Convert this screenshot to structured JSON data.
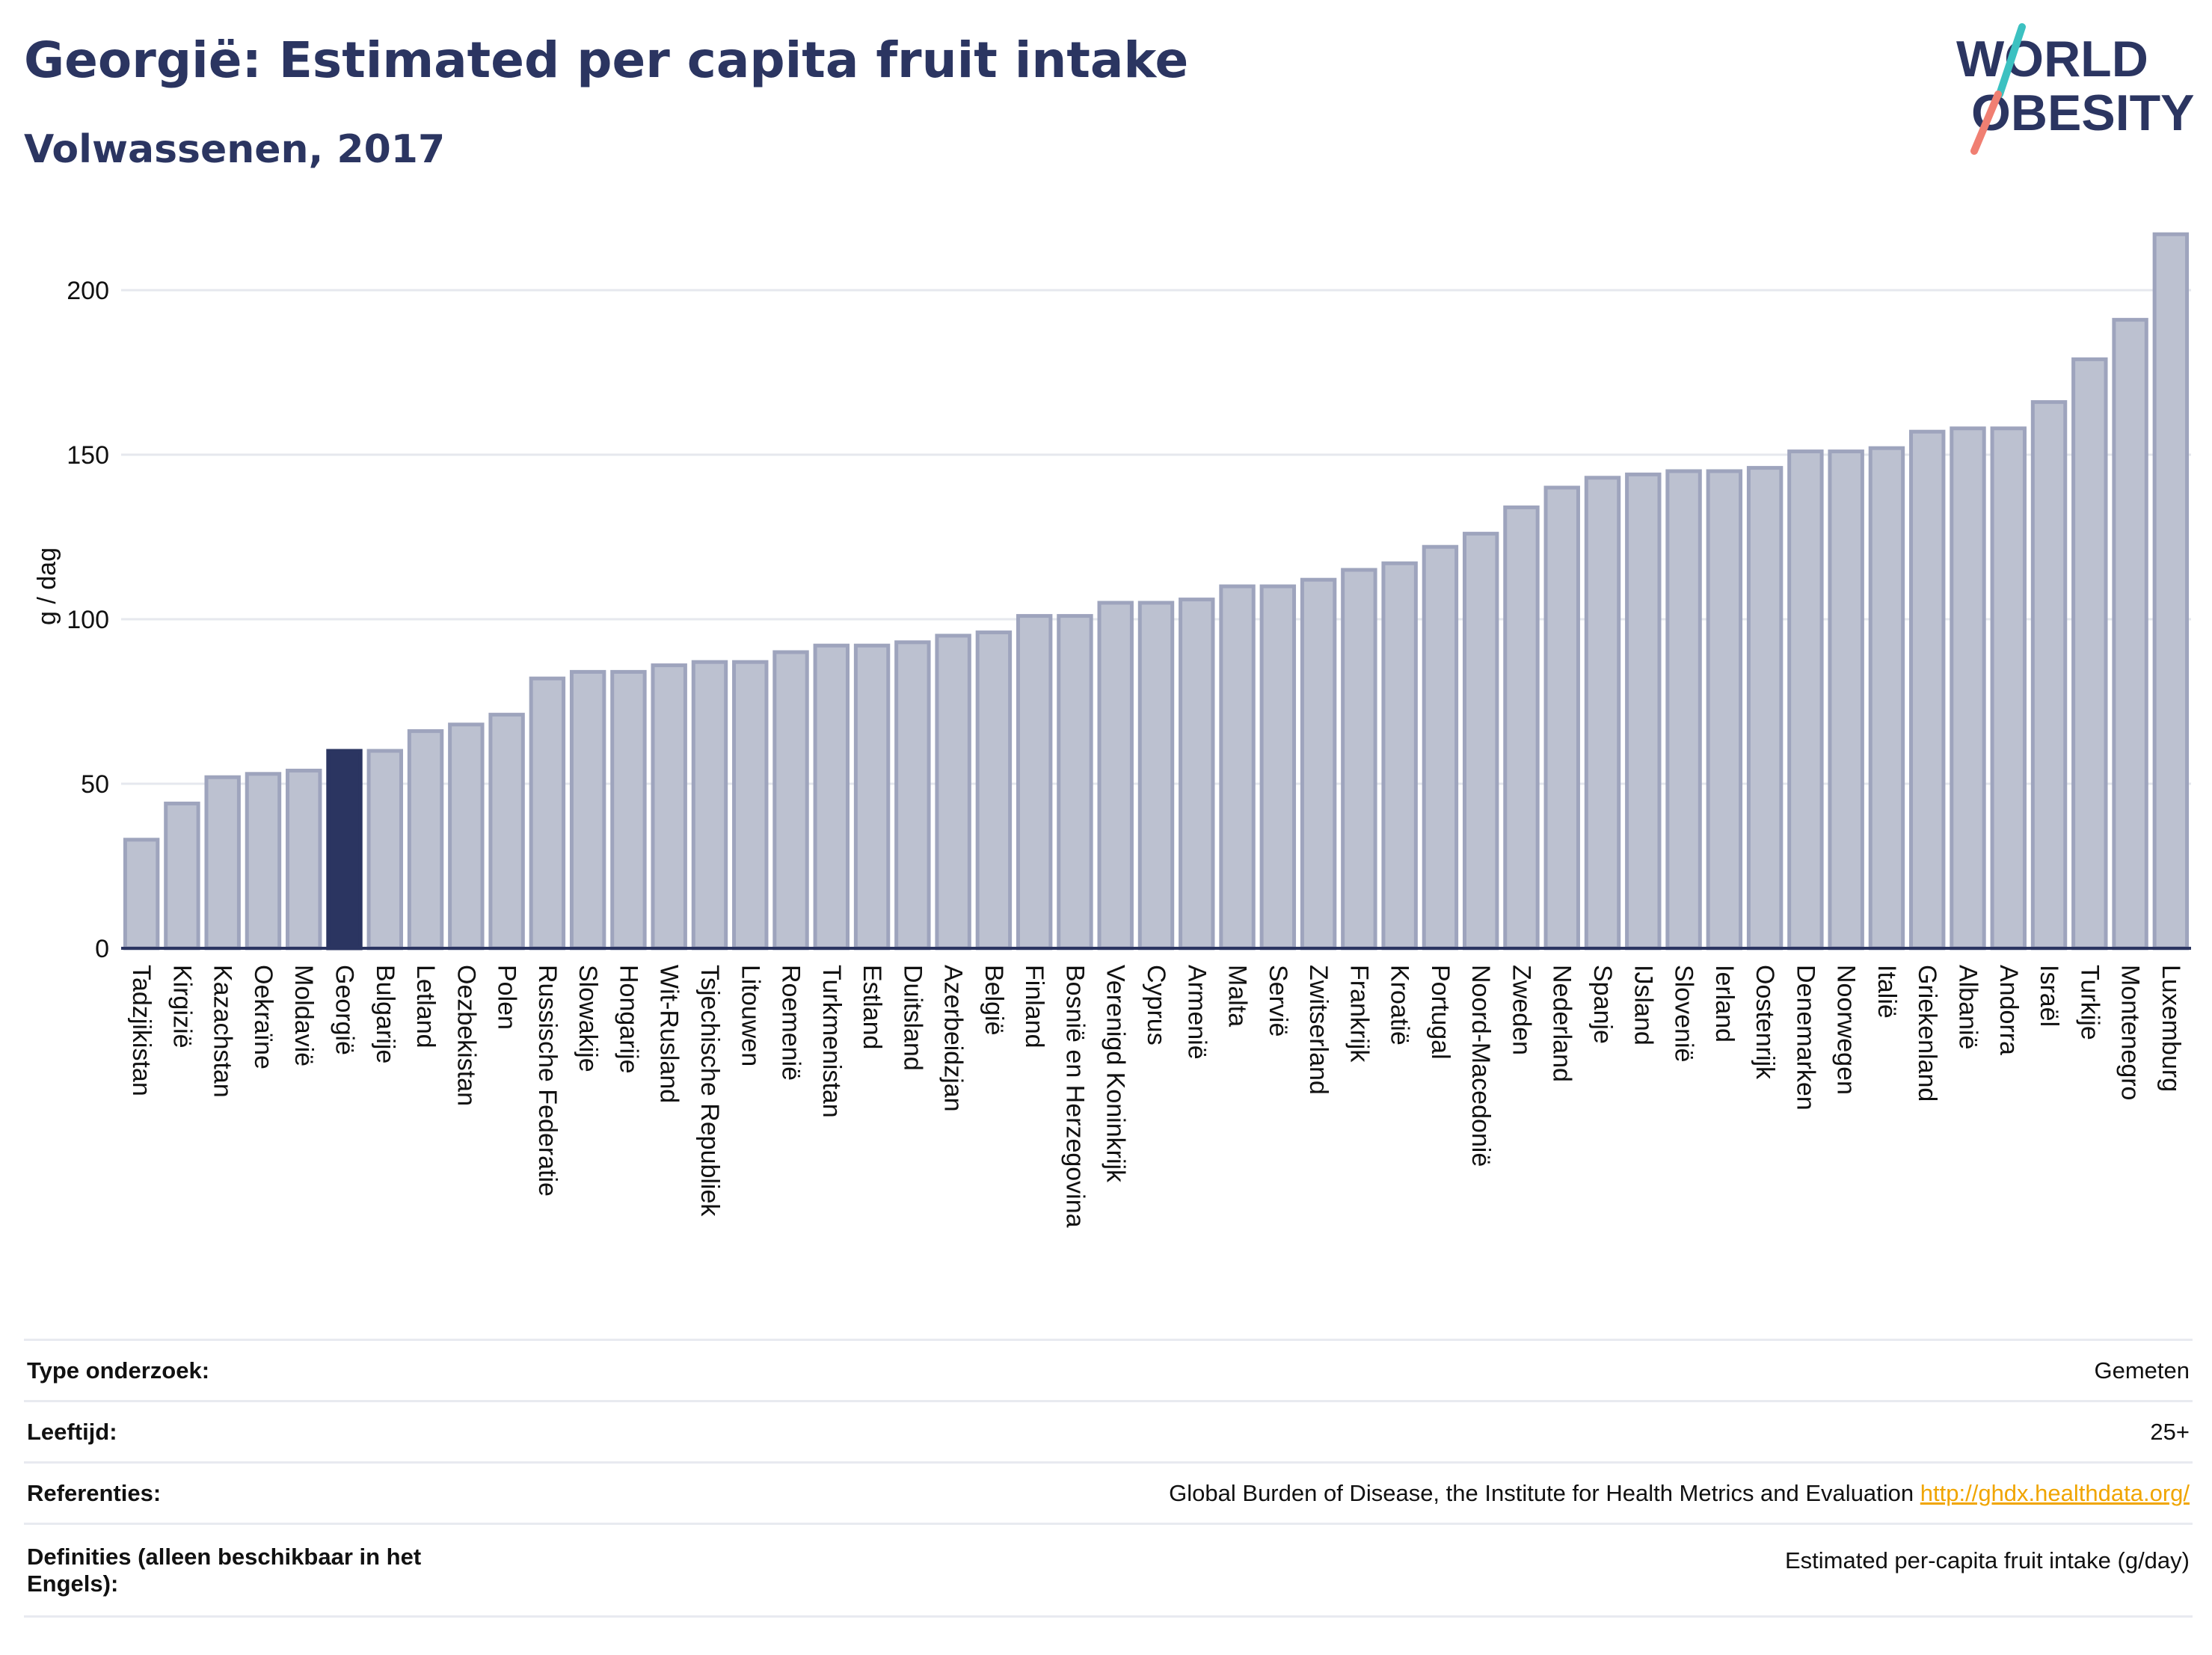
{
  "header": {
    "title": "Georgië: Estimated per capita fruit intake",
    "subtitle": "Volwassenen, 2017",
    "logo_line1": "WORLD",
    "logo_line2": "OBESITY"
  },
  "colors": {
    "highlight": "#2b3561",
    "bar_fill": "#bcc1d0",
    "bar_stroke": "#9ea4bd",
    "axis": "#2b3561",
    "grid": "#e6e8ee",
    "logo_teal": "#3cc1c1",
    "logo_coral": "#f07f72"
  },
  "chart_data": {
    "type": "bar",
    "ylabel": "g / dag",
    "ylim": [
      0,
      220
    ],
    "yticks": [
      0,
      50,
      100,
      150,
      200
    ],
    "grid": true,
    "highlight": "Georgië",
    "categories": [
      "Tadzjikistan",
      "Kirgizië",
      "Kazachstan",
      "Oekraïne",
      "Moldavië",
      "Georgië",
      "Bulgarije",
      "Letland",
      "Oezbekistan",
      "Polen",
      "Russische Federatie",
      "Slowakije",
      "Hongarije",
      "Wit-Rusland",
      "Tsjechische Republiek",
      "Litouwen",
      "Roemenië",
      "Turkmenistan",
      "Estland",
      "Duitsland",
      "Azerbeidzjan",
      "België",
      "Finland",
      "Bosnië en Herzegovina",
      "Verenigd Koninkrijk",
      "Cyprus",
      "Armenië",
      "Malta",
      "Servië",
      "Zwitserland",
      "Frankrijk",
      "Kroatië",
      "Portugal",
      "Noord-Macedonië",
      "Zweden",
      "Nederland",
      "Spanje",
      "IJsland",
      "Slovenië",
      "Ierland",
      "Oostenrijk",
      "Denemarken",
      "Noorwegen",
      "Italië",
      "Griekenland",
      "Albanië",
      "Andorra",
      "Israël",
      "Turkije",
      "Montenegro",
      "Luxemburg"
    ],
    "values": [
      33,
      44,
      52,
      53,
      54,
      60,
      60,
      66,
      68,
      71,
      82,
      84,
      84,
      86,
      87,
      87,
      90,
      92,
      92,
      93,
      95,
      96,
      101,
      101,
      105,
      105,
      106,
      110,
      110,
      112,
      115,
      117,
      122,
      126,
      134,
      140,
      143,
      144,
      145,
      145,
      146,
      151,
      151,
      152,
      157,
      158,
      158,
      166,
      179,
      191,
      217
    ]
  },
  "info": [
    {
      "label": "Type onderzoek:",
      "value": "Gemeten"
    },
    {
      "label": "Leeftijd:",
      "value": "25+"
    },
    {
      "label": "Referenties:",
      "value": "Global Burden of Disease, the Institute for Health Metrics and Evaluation",
      "link": "http://ghdx.healthdata.org/"
    },
    {
      "label": "Definities (alleen beschikbaar in het Engels):",
      "value": "Estimated per-capita fruit intake (g/day)"
    }
  ]
}
